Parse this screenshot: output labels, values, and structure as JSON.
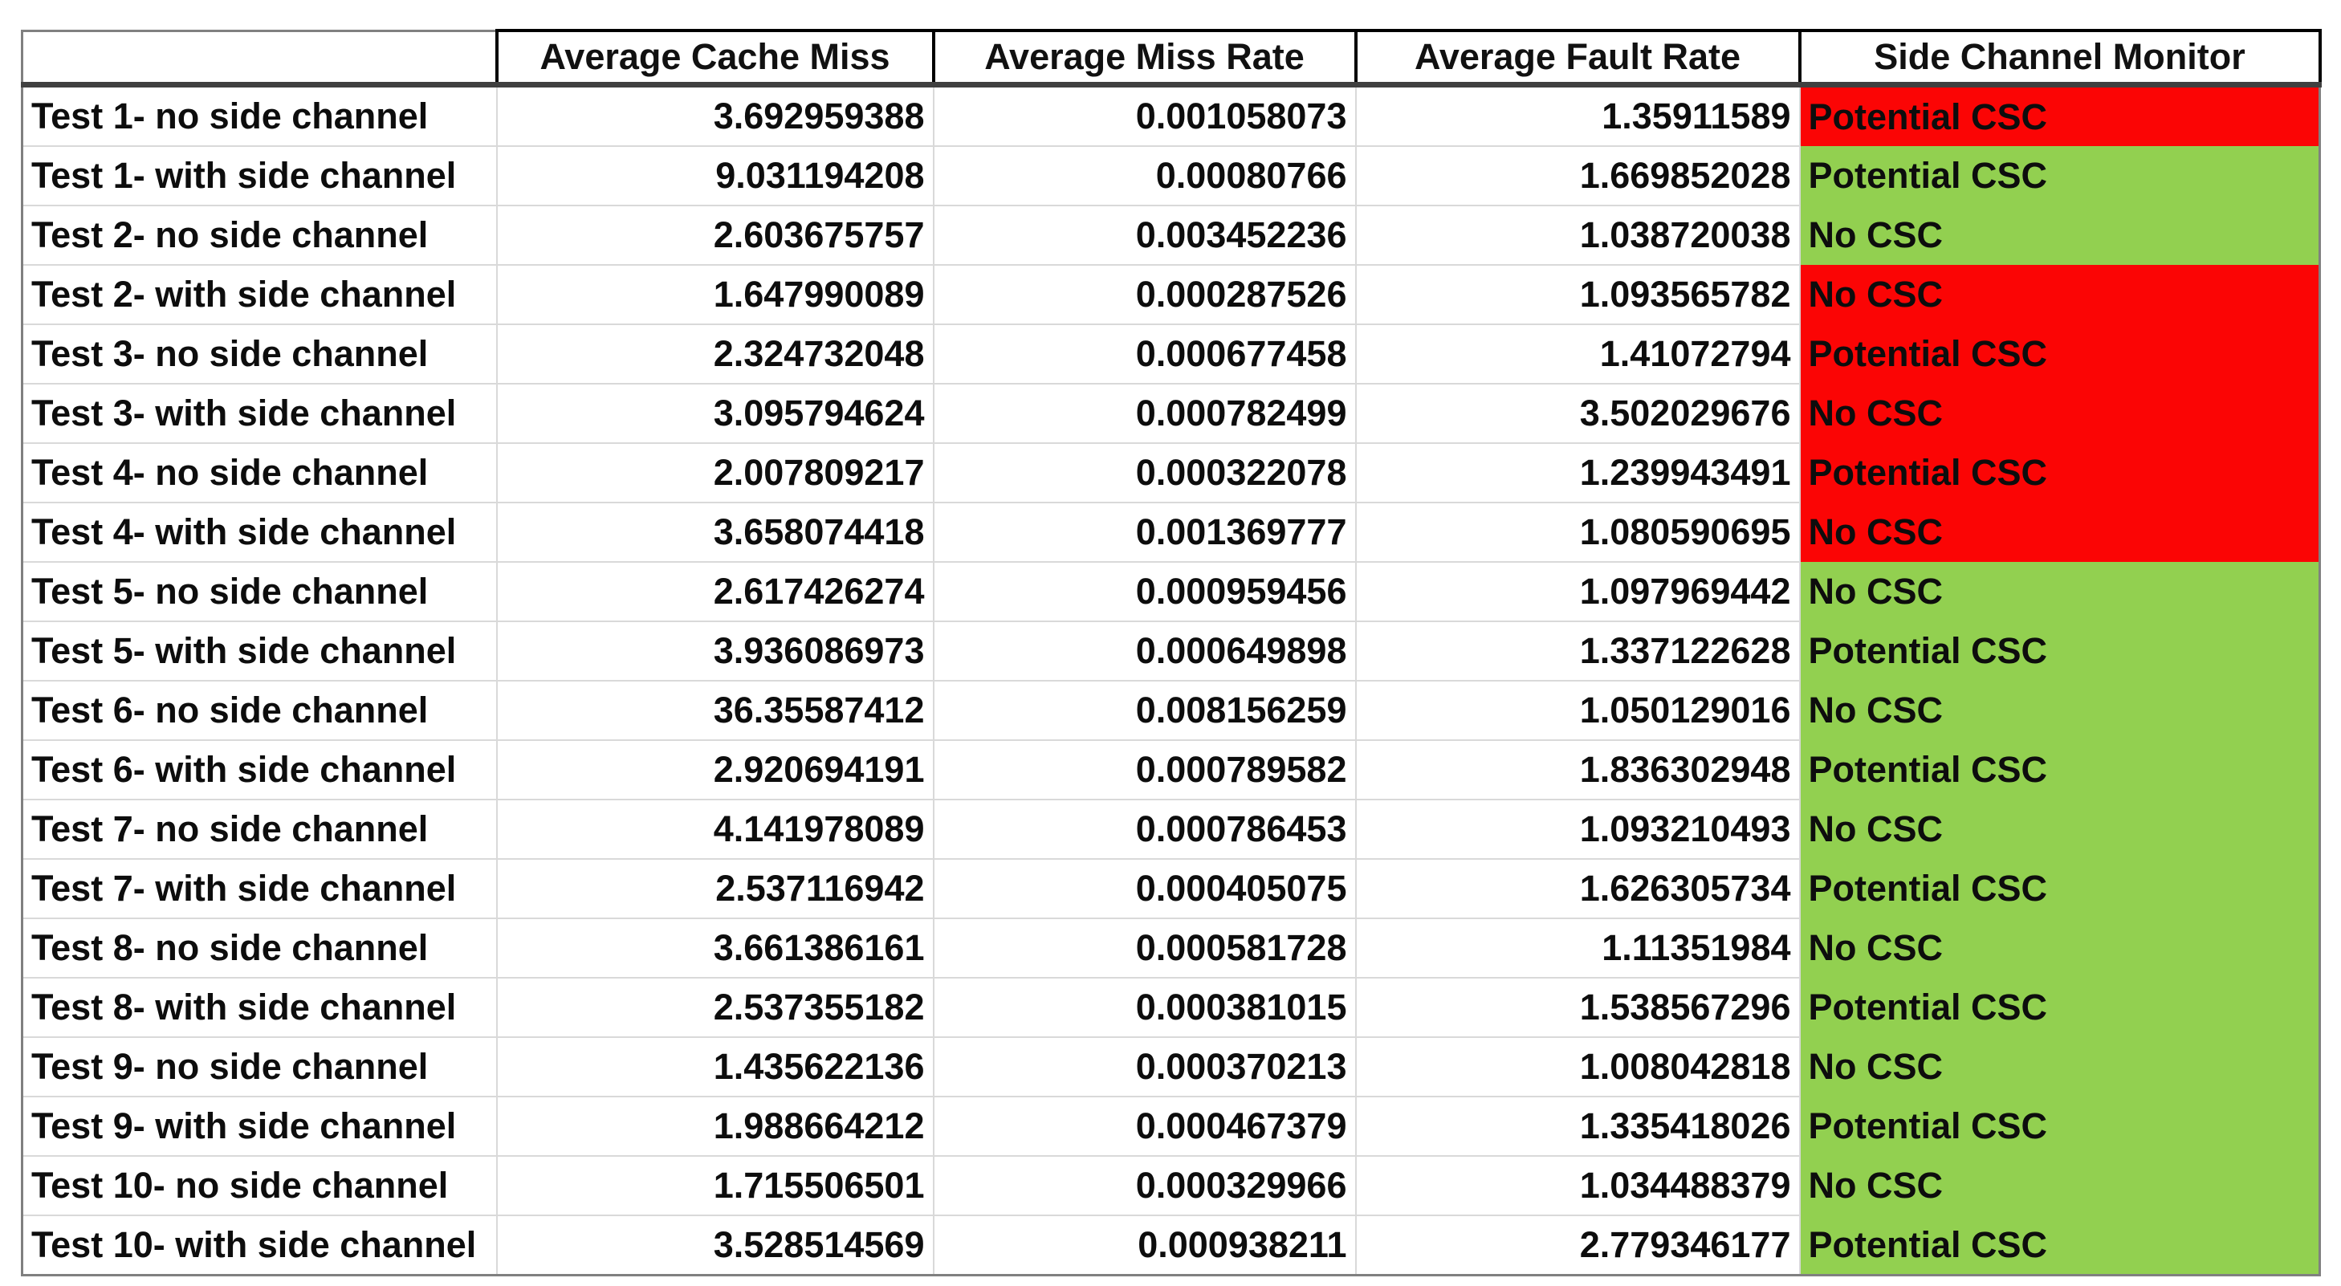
{
  "colors": {
    "monitor_red": "#fb0505",
    "monitor_green": "#92d050",
    "grid_line": "#d9d9d9",
    "header_border": "#000000",
    "text": "#0d0d0d"
  },
  "chart_data": {
    "type": "table",
    "columns": [
      "",
      "Average Cache Miss",
      "Average Miss Rate",
      "Average Fault Rate",
      "Side Channel Monitor"
    ],
    "rows": [
      {
        "label": "Test 1- no side channel",
        "avg_cache_miss": "3.692959388",
        "avg_miss_rate": "0.001058073",
        "avg_fault_rate": "1.35911589",
        "monitor": "Potential CSC",
        "monitor_color": "red"
      },
      {
        "label": "Test 1- with side channel",
        "avg_cache_miss": "9.031194208",
        "avg_miss_rate": "0.00080766",
        "avg_fault_rate": "1.669852028",
        "monitor": "Potential CSC",
        "monitor_color": "green"
      },
      {
        "label": "Test 2- no side channel",
        "avg_cache_miss": "2.603675757",
        "avg_miss_rate": "0.003452236",
        "avg_fault_rate": "1.038720038",
        "monitor": "No CSC",
        "monitor_color": "green"
      },
      {
        "label": "Test 2- with side channel",
        "avg_cache_miss": "1.647990089",
        "avg_miss_rate": "0.000287526",
        "avg_fault_rate": "1.093565782",
        "monitor": "No CSC",
        "monitor_color": "red"
      },
      {
        "label": "Test 3- no side channel",
        "avg_cache_miss": "2.324732048",
        "avg_miss_rate": "0.000677458",
        "avg_fault_rate": "1.41072794",
        "monitor": "Potential CSC",
        "monitor_color": "red"
      },
      {
        "label": "Test 3- with side channel",
        "avg_cache_miss": "3.095794624",
        "avg_miss_rate": "0.000782499",
        "avg_fault_rate": "3.502029676",
        "monitor": "No CSC",
        "monitor_color": "red"
      },
      {
        "label": "Test 4- no side channel",
        "avg_cache_miss": "2.007809217",
        "avg_miss_rate": "0.000322078",
        "avg_fault_rate": "1.239943491",
        "monitor": "Potential CSC",
        "monitor_color": "red"
      },
      {
        "label": "Test 4- with side channel",
        "avg_cache_miss": "3.658074418",
        "avg_miss_rate": "0.001369777",
        "avg_fault_rate": "1.080590695",
        "monitor": "No CSC",
        "monitor_color": "red"
      },
      {
        "label": "Test 5- no side channel",
        "avg_cache_miss": "2.617426274",
        "avg_miss_rate": "0.000959456",
        "avg_fault_rate": "1.097969442",
        "monitor": "No CSC",
        "monitor_color": "green"
      },
      {
        "label": "Test 5- with side channel",
        "avg_cache_miss": "3.936086973",
        "avg_miss_rate": "0.000649898",
        "avg_fault_rate": "1.337122628",
        "monitor": "Potential CSC",
        "monitor_color": "green"
      },
      {
        "label": "Test 6- no side channel",
        "avg_cache_miss": "36.35587412",
        "avg_miss_rate": "0.008156259",
        "avg_fault_rate": "1.050129016",
        "monitor": "No CSC",
        "monitor_color": "green"
      },
      {
        "label": "Test 6- with side channel",
        "avg_cache_miss": "2.920694191",
        "avg_miss_rate": "0.000789582",
        "avg_fault_rate": "1.836302948",
        "monitor": "Potential CSC",
        "monitor_color": "green"
      },
      {
        "label": "Test 7- no side channel",
        "avg_cache_miss": "4.141978089",
        "avg_miss_rate": "0.000786453",
        "avg_fault_rate": "1.093210493",
        "monitor": "No CSC",
        "monitor_color": "green"
      },
      {
        "label": "Test 7- with side channel",
        "avg_cache_miss": "2.537116942",
        "avg_miss_rate": "0.000405075",
        "avg_fault_rate": "1.626305734",
        "monitor": "Potential CSC",
        "monitor_color": "green"
      },
      {
        "label": "Test 8- no side channel",
        "avg_cache_miss": "3.661386161",
        "avg_miss_rate": "0.000581728",
        "avg_fault_rate": "1.11351984",
        "monitor": "No CSC",
        "monitor_color": "green"
      },
      {
        "label": "Test 8- with side channel",
        "avg_cache_miss": "2.537355182",
        "avg_miss_rate": "0.000381015",
        "avg_fault_rate": "1.538567296",
        "monitor": "Potential CSC",
        "monitor_color": "green"
      },
      {
        "label": "Test 9- no side channel",
        "avg_cache_miss": "1.435622136",
        "avg_miss_rate": "0.000370213",
        "avg_fault_rate": "1.008042818",
        "monitor": "No CSC",
        "monitor_color": "green"
      },
      {
        "label": "Test 9- with side channel",
        "avg_cache_miss": "1.988664212",
        "avg_miss_rate": "0.000467379",
        "avg_fault_rate": "1.335418026",
        "monitor": "Potential CSC",
        "monitor_color": "green"
      },
      {
        "label": "Test 10- no side channel",
        "avg_cache_miss": "1.715506501",
        "avg_miss_rate": "0.000329966",
        "avg_fault_rate": "1.034488379",
        "monitor": "No CSC",
        "monitor_color": "green"
      },
      {
        "label": "Test 10- with side channel",
        "avg_cache_miss": "3.528514569",
        "avg_miss_rate": "0.000938211",
        "avg_fault_rate": "2.779346177",
        "monitor": "Potential CSC",
        "monitor_color": "green"
      }
    ]
  }
}
